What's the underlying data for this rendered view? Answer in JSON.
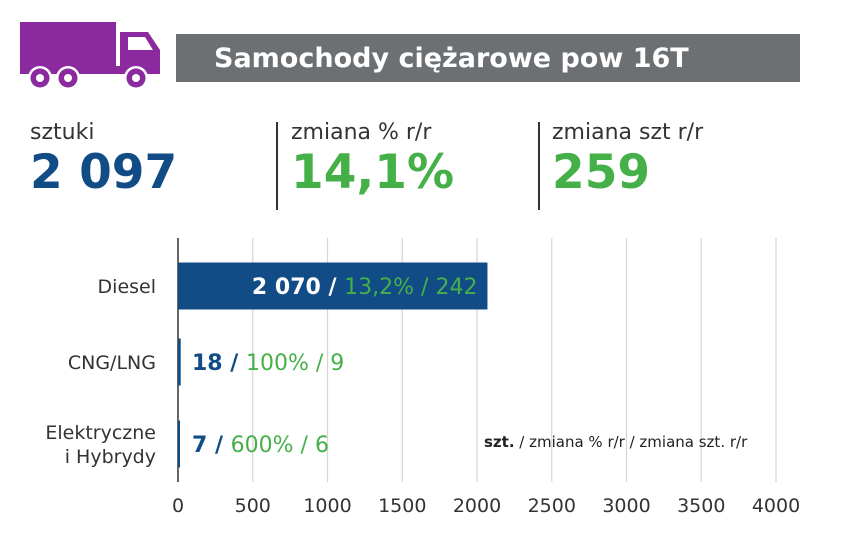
{
  "icon": {
    "name": "truck-icon",
    "color": "#8a2a9e"
  },
  "title": "Samochody ciężarowe pow 16T",
  "stats": [
    {
      "label": "sztuki",
      "value": "2 097",
      "color": "#114c86"
    },
    {
      "label": "zmiana % r/r",
      "value": "14,1%",
      "color": "#46b048"
    },
    {
      "label": "zmiana szt r/r",
      "value": "259",
      "color": "#46b048"
    }
  ],
  "colors": {
    "bar": "#114c86",
    "label_primary": "#114c86",
    "label_secondary": "#46b048",
    "grid": "#d6d6d6",
    "axis": "#333333"
  },
  "chart_data": {
    "type": "bar",
    "orientation": "horizontal",
    "categories": [
      "Diesel",
      "CNG/LNG",
      "Elektryczne\ni Hybrydy"
    ],
    "values": [
      2070,
      18,
      7
    ],
    "bar_labels": [
      {
        "count": "2 070 /",
        "rest": "13,2% / 242"
      },
      {
        "count": "18 /",
        "rest": "100% / 9"
      },
      {
        "count": "7 /",
        "rest": "600% / 6"
      }
    ],
    "xlim": [
      0,
      4000
    ],
    "xticks": [
      0,
      500,
      1000,
      1500,
      2000,
      2500,
      3000,
      3500,
      4000
    ],
    "grid": true,
    "annotation": {
      "bold": "szt.",
      "text": " / zmiana % r/r / zmiana szt. r/r"
    }
  }
}
